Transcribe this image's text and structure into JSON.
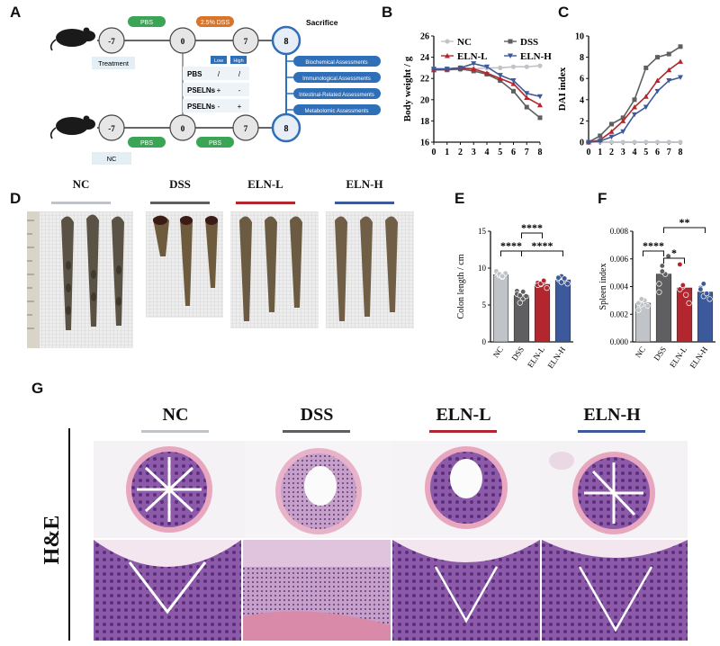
{
  "panels": {
    "A": "A",
    "B": "B",
    "C": "C",
    "D": "D",
    "E": "E",
    "F": "F",
    "G": "G"
  },
  "schematic": {
    "pbs_top": "PBS",
    "dss_top": "2.5% DSS",
    "sacrifice": "Sacrifice",
    "treatment": "Treatment",
    "nc": "NC",
    "pbs_bottom1": "PBS",
    "pbs_bottom2": "PBS",
    "timepoints_top": [
      "-7",
      "0",
      "7",
      "8"
    ],
    "timepoints_bottom": [
      "-7",
      "0",
      "7",
      "8"
    ],
    "dose_headers": [
      "Low",
      "High"
    ],
    "dose_rows": [
      {
        "label": "PBS",
        "low": "/",
        "high": "/"
      },
      {
        "label": "PSELNs",
        "low": "+",
        "high": "-"
      },
      {
        "label": "PSELNs",
        "low": "-",
        "high": "+"
      }
    ],
    "assessments": [
      "Biochemical Assessments",
      "Immunological Assessments",
      "Intestinal-Related Assessments",
      "Metabolomic Assessments"
    ]
  },
  "colors": {
    "NC": "#c0c4c8",
    "DSS": "#5f5f62",
    "ELN-L": "#b3262e",
    "ELN-H": "#3c5a9b",
    "accent_blue": "#2f6fb8",
    "green": "#3aa655",
    "orange": "#d9742b"
  },
  "groups": [
    "NC",
    "DSS",
    "ELN-L",
    "ELN-H"
  ],
  "chart_data": [
    {
      "id": "B",
      "type": "line",
      "ylabel": "Body weight / g",
      "x": [
        0,
        1,
        2,
        3,
        4,
        5,
        6,
        7,
        8
      ],
      "ylim": [
        16,
        26
      ],
      "yticks": [
        16,
        18,
        20,
        22,
        24,
        26
      ],
      "legend": [
        "NC",
        "DSS",
        "ELN-L",
        "ELN-H"
      ],
      "series": [
        {
          "name": "NC",
          "values": [
            22.9,
            22.9,
            22.8,
            22.9,
            23.0,
            23.0,
            23.1,
            23.1,
            23.2
          ]
        },
        {
          "name": "DSS",
          "values": [
            22.8,
            22.8,
            22.9,
            22.7,
            22.4,
            21.8,
            20.8,
            19.3,
            18.3
          ]
        },
        {
          "name": "ELN-L",
          "values": [
            22.8,
            22.9,
            23.0,
            22.9,
            22.5,
            22.0,
            21.5,
            20.2,
            19.5
          ]
        },
        {
          "name": "ELN-H",
          "values": [
            22.9,
            22.9,
            23.0,
            23.4,
            23.1,
            22.3,
            21.8,
            20.6,
            20.3
          ]
        }
      ]
    },
    {
      "id": "C",
      "type": "line",
      "ylabel": "DAI index",
      "x": [
        0,
        1,
        2,
        3,
        4,
        5,
        6,
        7,
        8
      ],
      "ylim": [
        0,
        10
      ],
      "yticks": [
        0,
        2,
        4,
        6,
        8,
        10
      ],
      "series": [
        {
          "name": "NC",
          "values": [
            0,
            0,
            0,
            0,
            0,
            0,
            0,
            0,
            0
          ]
        },
        {
          "name": "DSS",
          "values": [
            0,
            0.6,
            1.7,
            2.3,
            4.0,
            7.0,
            8.0,
            8.3,
            9.0
          ]
        },
        {
          "name": "ELN-L",
          "values": [
            0,
            0.2,
            1.0,
            2.0,
            3.3,
            4.3,
            5.8,
            6.8,
            7.6
          ]
        },
        {
          "name": "ELN-H",
          "values": [
            0,
            0.1,
            0.5,
            1.0,
            2.6,
            3.3,
            4.8,
            5.8,
            6.1
          ]
        }
      ]
    },
    {
      "id": "E",
      "type": "bar",
      "ylabel": "Colon length / cm",
      "categories": [
        "NC",
        "DSS",
        "ELN-L",
        "ELN-H"
      ],
      "values": [
        9.1,
        6.3,
        7.8,
        8.4
      ],
      "ylim": [
        0,
        15
      ],
      "yticks": [
        0,
        5,
        10,
        15
      ],
      "points": [
        [
          9.4,
          9.0,
          8.8,
          9.3,
          9.6,
          9.2,
          8.9
        ],
        [
          6.9,
          5.3,
          5.9,
          6.2,
          6.5,
          6.3,
          6.8
        ],
        [
          8.0,
          7.8,
          8.1,
          7.3,
          7.7,
          7.9,
          8.3
        ],
        [
          8.5,
          8.9,
          8.3,
          7.9,
          8.7,
          8.1,
          8.6
        ]
      ],
      "significance": [
        {
          "pair": [
            "NC",
            "DSS"
          ],
          "label": "****"
        },
        {
          "pair": [
            "DSS",
            "ELN-L"
          ],
          "label": "****"
        },
        {
          "pair": [
            "DSS",
            "ELN-H"
          ],
          "label": "****"
        }
      ]
    },
    {
      "id": "F",
      "type": "bar",
      "ylabel": "Spleen index",
      "categories": [
        "NC",
        "DSS",
        "ELN-L",
        "ELN-H"
      ],
      "values": [
        0.0028,
        0.0049,
        0.0039,
        0.0036
      ],
      "ylim": [
        0,
        0.008
      ],
      "yticks": [
        0,
        0.002,
        0.004,
        0.006,
        0.008
      ],
      "ytick_labels": [
        "0.000",
        "0.002",
        "0.004",
        "0.006",
        "0.008"
      ],
      "points": [
        [
          0.0023,
          0.0027,
          0.003,
          0.0026,
          0.0028,
          0.0031
        ],
        [
          0.0036,
          0.0055,
          0.0049,
          0.0062,
          0.0042,
          0.0051
        ],
        [
          0.0056,
          0.004,
          0.0034,
          0.0028,
          0.0038,
          0.0041
        ],
        [
          0.0039,
          0.0033,
          0.0035,
          0.0031,
          0.0038,
          0.0042
        ]
      ],
      "significance": [
        {
          "pair": [
            "NC",
            "DSS"
          ],
          "label": "****"
        },
        {
          "pair": [
            "DSS",
            "ELN-L"
          ],
          "label": "*"
        },
        {
          "pair": [
            "DSS",
            "ELN-H"
          ],
          "label": "**"
        }
      ]
    }
  ],
  "histology": {
    "stain": "H&E",
    "groups": [
      "NC",
      "DSS",
      "ELN-L",
      "ELN-H"
    ]
  }
}
